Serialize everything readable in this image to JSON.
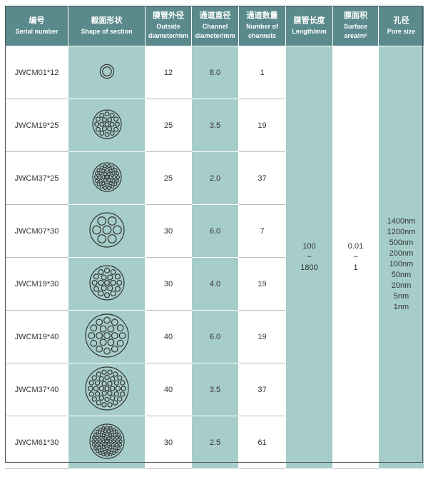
{
  "table": {
    "header": [
      [
        "编号",
        "Serial number"
      ],
      [
        "截面形状",
        "Shape of section"
      ],
      [
        "膜管外径",
        "Outside diameter/mm"
      ],
      [
        "通道直径",
        "Channel diameter/mm"
      ],
      [
        "通道数量",
        "Number of channels"
      ],
      [
        "膜管长度",
        "Length/mm"
      ],
      [
        "膜面积",
        "Surface area/m²"
      ],
      [
        "孔径",
        "Pore size"
      ]
    ],
    "rows": [
      [
        "JWCM01*12",
        "12",
        "8.0",
        "1"
      ],
      [
        "JWCM19*25",
        "25",
        "3.5",
        "19"
      ],
      [
        "JWCM37*25",
        "25",
        "2.0",
        "37"
      ],
      [
        "JWCM07*30",
        "30",
        "6.0",
        "7"
      ],
      [
        "JWCM19*30",
        "30",
        "4.0",
        "19"
      ],
      [
        "JWCM19*40",
        "40",
        "6.0",
        "19"
      ],
      [
        "JWCM37*40",
        "40",
        "3.5",
        "37"
      ],
      [
        "JWCM61*30",
        "30",
        "2.5",
        "61"
      ]
    ],
    "length": [
      "100",
      "~",
      "1800"
    ],
    "area": [
      "0.01",
      "~",
      "1"
    ],
    "pore": [
      "1400nm",
      "1200nm",
      "500nm",
      "200nm",
      "100nm",
      "50nm",
      "20nm",
      "5nm",
      "1nm"
    ]
  }
}
